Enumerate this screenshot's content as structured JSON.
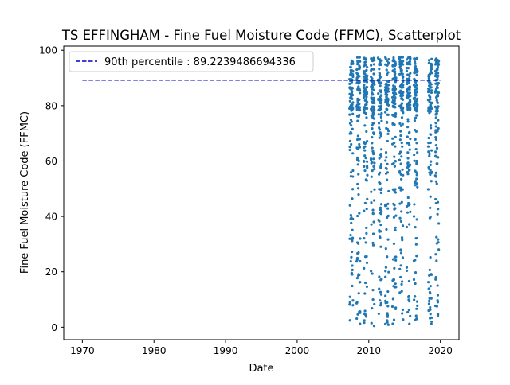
{
  "chart_data": {
    "type": "scatter",
    "title": "TS EFFINGHAM - Fine Fuel Moisture Code (FFMC), Scatterplot",
    "xlabel": "Date",
    "ylabel": "Fine Fuel Moisture Code (FFMC)",
    "xlim": [
      1967.4,
      2022.6
    ],
    "ylim": [
      -4.5,
      101.5
    ],
    "xticks": [
      "1970",
      "1980",
      "1990",
      "2000",
      "2010",
      "2020"
    ],
    "yticks": [
      "0",
      "20",
      "40",
      "60",
      "80",
      "100"
    ],
    "grid": false,
    "legend_position": "top-left",
    "series_color": "#1f77b4",
    "reference_line": {
      "label": "90th percentile : 89.2239486694336",
      "value": 89.2239486694336,
      "x_range": [
        1970,
        2020
      ],
      "color": "#0000cc",
      "style": "dashed"
    },
    "seasons": [
      {
        "year": 2007,
        "start": 2007.3,
        "end": 2007.8
      },
      {
        "year": 2008,
        "start": 2008.3,
        "end": 2008.8
      },
      {
        "year": 2009,
        "start": 2009.3,
        "end": 2009.8
      },
      {
        "year": 2010,
        "start": 2010.3,
        "end": 2010.8
      },
      {
        "year": 2011,
        "start": 2011.3,
        "end": 2011.8
      },
      {
        "year": 2012,
        "start": 2012.3,
        "end": 2012.8
      },
      {
        "year": 2013,
        "start": 2013.3,
        "end": 2013.8
      },
      {
        "year": 2014,
        "start": 2014.3,
        "end": 2014.8
      },
      {
        "year": 2015,
        "start": 2015.3,
        "end": 2015.8
      },
      {
        "year": 2016,
        "start": 2016.3,
        "end": 2016.8
      },
      {
        "year": 2018,
        "start": 2018.3,
        "end": 2018.8
      },
      {
        "year": 2019,
        "start": 2019.3,
        "end": 2019.8
      }
    ],
    "value_range": [
      0,
      97.5
    ]
  }
}
